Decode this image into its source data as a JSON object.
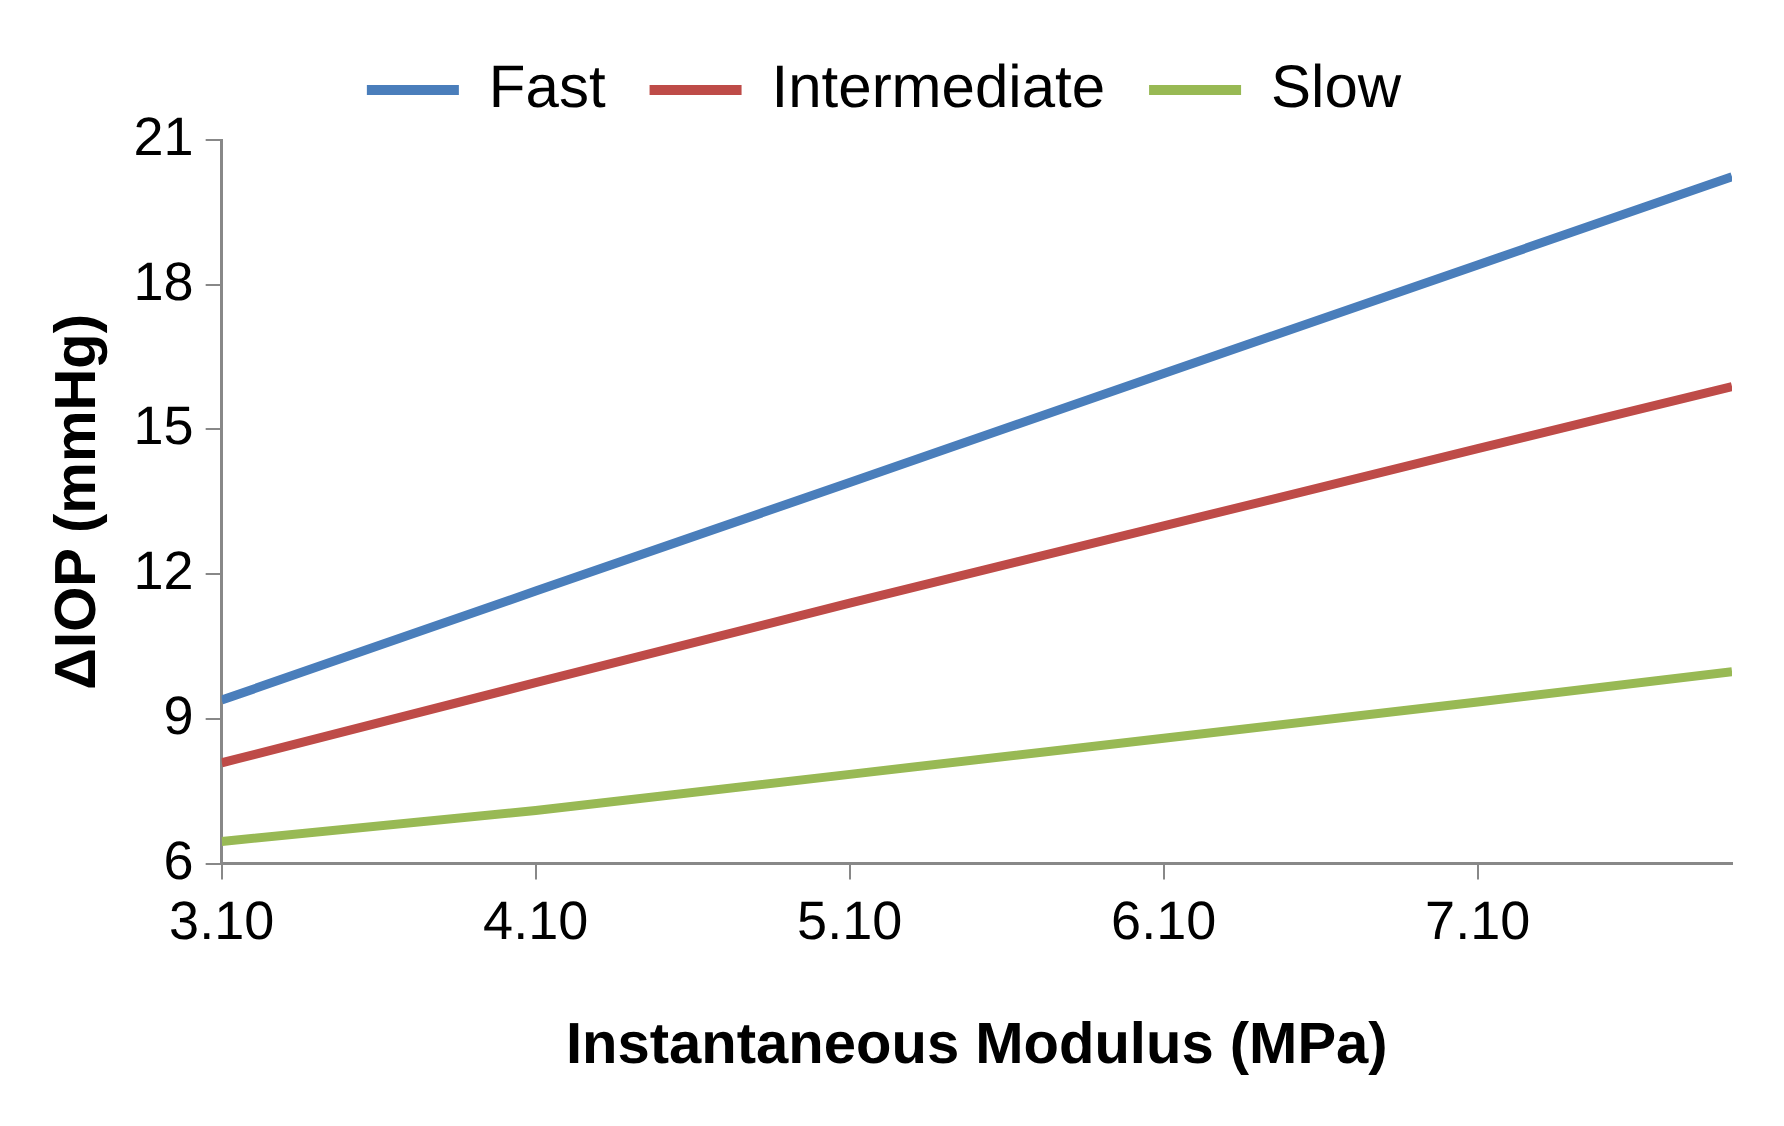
{
  "chart_data": {
    "type": "line",
    "xlabel": "Instantaneous Modulus (MPa)",
    "ylabel": "ΔIOP (mmHg)",
    "x": [
      3.1,
      4.1,
      5.1,
      6.1,
      7.1,
      7.91
    ],
    "series": [
      {
        "name": "Fast",
        "color": "#4a7ebb",
        "values": [
          9.39,
          11.65,
          13.9,
          16.16,
          18.41,
          20.24
        ]
      },
      {
        "name": "Intermediate",
        "color": "#be4b48",
        "values": [
          8.09,
          9.75,
          11.4,
          13.0,
          14.6,
          15.89
        ]
      },
      {
        "name": "Slow",
        "color": "#98b954",
        "values": [
          6.46,
          7.1,
          7.85,
          8.6,
          9.35,
          9.98
        ]
      }
    ],
    "xlim": [
      3.1,
      7.91
    ],
    "xticks": [
      {
        "value": 3.1,
        "label": "3.10"
      },
      {
        "value": 4.1,
        "label": "4.10"
      },
      {
        "value": 5.1,
        "label": "5.10"
      },
      {
        "value": 6.1,
        "label": "6.10"
      },
      {
        "value": 7.1,
        "label": "7.10"
      }
    ],
    "ylim": [
      6,
      21
    ],
    "yticks": [
      6,
      9,
      12,
      15,
      18,
      21
    ],
    "grid": false,
    "legend": "top",
    "marker": "none",
    "line_style": "solid"
  }
}
